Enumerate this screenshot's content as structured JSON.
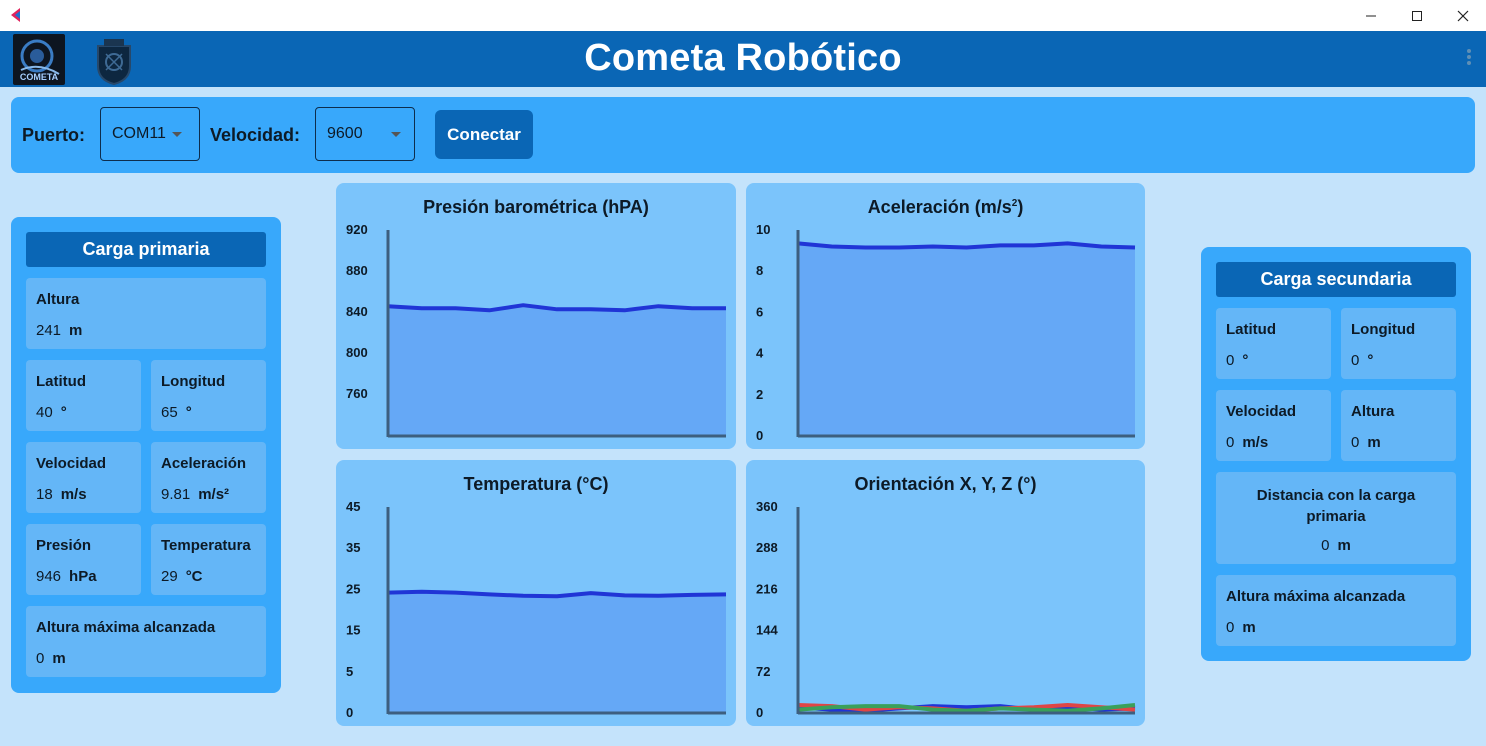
{
  "window": {
    "minimize": "—",
    "maximize": "☐",
    "close": "✕"
  },
  "header": {
    "title": "Cometa Robótico",
    "logo_text": "COMETA"
  },
  "connection": {
    "port_label": "Puerto:",
    "port_value": "COM11",
    "speed_label": "Velocidad:",
    "speed_value": "9600",
    "connect_label": "Conectar"
  },
  "primary": {
    "title": "Carga primaria",
    "altura": {
      "label": "Altura",
      "value": "241",
      "unit": "m"
    },
    "latitud": {
      "label": "Latitud",
      "value": "40",
      "unit": "°"
    },
    "longitud": {
      "label": "Longitud",
      "value": "65",
      "unit": "°"
    },
    "velocidad": {
      "label": "Velocidad",
      "value": "18",
      "unit": "m/s"
    },
    "aceleracion": {
      "label": "Aceleración",
      "value": "9.81",
      "unit": "m/s²"
    },
    "presion": {
      "label": "Presión",
      "value": "946",
      "unit": "hPa"
    },
    "temperatura": {
      "label": "Temperatura",
      "value": "29",
      "unit": "°C"
    },
    "altura_max": {
      "label": "Altura máxima alcanzada",
      "value": "0",
      "unit": "m"
    }
  },
  "secondary": {
    "title": "Carga secundaria",
    "latitud": {
      "label": "Latitud",
      "value": "0",
      "unit": "°"
    },
    "longitud": {
      "label": "Longitud",
      "value": "0",
      "unit": "°"
    },
    "velocidad": {
      "label": "Velocidad",
      "value": "0",
      "unit": "m/s"
    },
    "altura": {
      "label": "Altura",
      "value": "0",
      "unit": "m"
    },
    "distancia": {
      "label": "Distancia con la carga primaria",
      "value": "0",
      "unit": "m"
    },
    "altura_max": {
      "label": "Altura máxima alcanzada",
      "value": "0",
      "unit": "m"
    }
  },
  "colors": {
    "line": "#2035d6",
    "fill": "#65a8f6",
    "axis": "#3d5f7f",
    "red": "#e04545",
    "green": "#3aa05a"
  },
  "chart_data": [
    {
      "id": "pressure",
      "type": "area",
      "title": "Presión barométrica (hPA)",
      "yticks": [
        "920",
        "880",
        "840",
        "800",
        "760"
      ],
      "ylim": [
        720,
        920
      ],
      "series": [
        {
          "values": [
            846,
            844,
            844,
            842,
            847,
            843,
            843,
            842,
            846,
            844,
            844
          ]
        }
      ]
    },
    {
      "id": "accel",
      "type": "area",
      "title": "Aceleración (m/s²)",
      "yticks": [
        "10",
        "8",
        "6",
        "4",
        "2",
        "0"
      ],
      "ylim": [
        0,
        10
      ],
      "series": [
        {
          "values": [
            9.35,
            9.2,
            9.15,
            9.15,
            9.2,
            9.15,
            9.25,
            9.25,
            9.35,
            9.2,
            9.15
          ]
        }
      ]
    },
    {
      "id": "temp",
      "type": "area",
      "title": "Temperatura (°C)",
      "yticks": [
        "45",
        "35",
        "25",
        "15",
        "5",
        "0"
      ],
      "ylim": [
        0,
        45
      ],
      "series": [
        {
          "values": [
            26.3,
            26.5,
            26.3,
            25.9,
            25.6,
            25.5,
            26.2,
            25.7,
            25.6,
            25.8,
            25.9
          ]
        }
      ]
    },
    {
      "id": "orient",
      "type": "line",
      "title": "Orientación X, Y, Z (°)",
      "yticks": [
        "360",
        "288",
        "216",
        "144",
        "72",
        "0"
      ],
      "ylim": [
        0,
        360
      ],
      "series": [
        {
          "color": "#2035d6",
          "values": [
            10,
            6,
            4,
            8,
            12,
            10,
            12,
            6,
            10,
            6,
            8
          ]
        },
        {
          "color": "#e04545",
          "values": [
            14,
            12,
            6,
            10,
            8,
            4,
            8,
            10,
            14,
            10,
            6
          ]
        },
        {
          "color": "#3aa05a",
          "values": [
            6,
            10,
            12,
            12,
            6,
            4,
            8,
            6,
            4,
            8,
            14
          ]
        }
      ]
    }
  ]
}
